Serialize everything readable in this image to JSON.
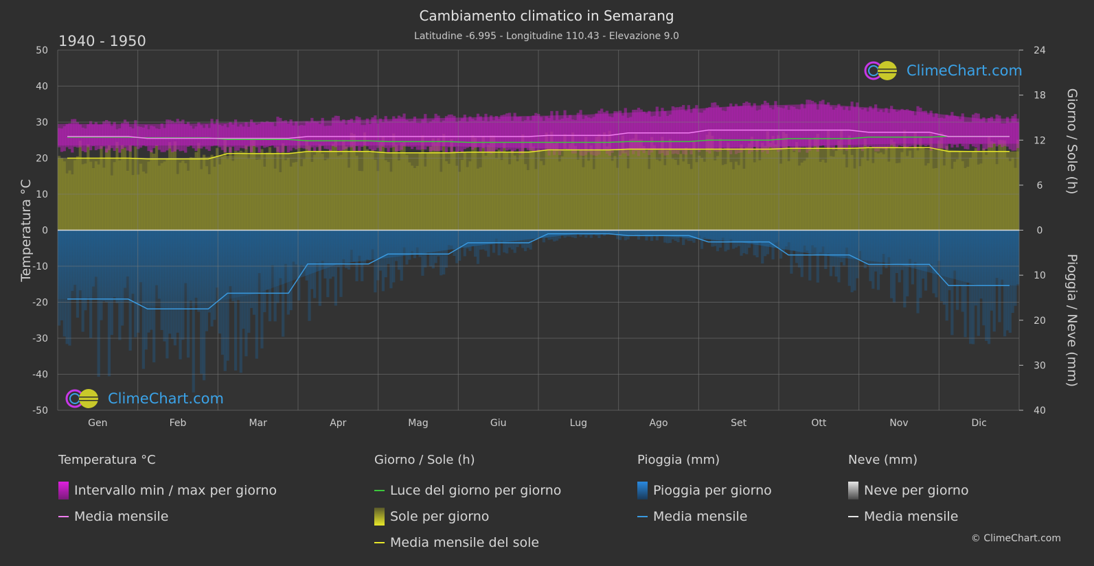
{
  "title": "Cambiamento climatico in Semarang",
  "subtitle": "Latitudine -6.995 - Longitudine 110.43 - Elevazione 9.0",
  "period": "1940 - 1950",
  "logo_text": "ClimeChart.com",
  "copyright": "© ClimeChart.com",
  "colors": {
    "background": "#2f2f2f",
    "temp_range": "#c31fc3",
    "temp_mean": "#f27ff2",
    "daylight": "#3cc83c",
    "sunshine_fill": "#9c9c2a",
    "sunshine_mean": "#e8e82a",
    "rain_fill": "#1c6aa8",
    "rain_mean": "#3a9ae0",
    "snow_mean": "#e6e6e6"
  },
  "chart_data": {
    "type": "line",
    "months": [
      "Gen",
      "Feb",
      "Mar",
      "Apr",
      "Mag",
      "Giu",
      "Lug",
      "Ago",
      "Set",
      "Ott",
      "Nov",
      "Dic"
    ],
    "y_left": {
      "label": "Temperatura °C",
      "range": [
        -50,
        50
      ],
      "ticks": [
        "50",
        "40",
        "30",
        "20",
        "10",
        "0",
        "-10",
        "-20",
        "-30",
        "-40",
        "-50"
      ]
    },
    "y_right_top": {
      "label": "Giorno / Sole (h)",
      "range": [
        0,
        24
      ],
      "ticks": [
        "24",
        "18",
        "12",
        "6",
        "0"
      ]
    },
    "y_right_bottom": {
      "label": "Pioggia / Neve (mm)",
      "range": [
        0,
        40
      ],
      "ticks": [
        "0",
        "10",
        "20",
        "30",
        "40"
      ]
    },
    "grid": true,
    "series": {
      "temp_max": [
        29.5,
        29.5,
        30,
        30.5,
        31,
        31.5,
        32,
        33,
        34.5,
        35,
        33.5,
        31
      ],
      "temp_min": [
        23.5,
        23.5,
        23.5,
        23.5,
        23.5,
        23,
        22.5,
        22.5,
        23,
        23.5,
        24,
        24
      ],
      "temp_mean": [
        26,
        25.5,
        25.5,
        26,
        26,
        26,
        26.3,
        27,
        27.8,
        27.8,
        27.2,
        26
      ],
      "daylight_hours": [
        12.4,
        12.3,
        12.1,
        11.9,
        11.8,
        11.7,
        11.7,
        11.8,
        12.0,
        12.2,
        12.4,
        12.5
      ],
      "sunshine_hours_mean": [
        9.6,
        9.5,
        10.2,
        10.5,
        10.3,
        10.4,
        10.7,
        10.8,
        10.8,
        10.9,
        11.0,
        10.5
      ],
      "rain_mm_mean": [
        15.3,
        17.5,
        14.0,
        7.5,
        5.3,
        2.8,
        0.8,
        1.2,
        2.6,
        5.5,
        7.6,
        12.3
      ],
      "snow_mm_mean": [
        0,
        0,
        0,
        0,
        0,
        0,
        0,
        0,
        0,
        0,
        0,
        0
      ]
    }
  },
  "legend": {
    "temperature": {
      "header": "Temperatura °C",
      "range_label": "Intervallo min / max per giorno",
      "mean_label": "Media mensile"
    },
    "daysun": {
      "header": "Giorno / Sole (h)",
      "daylight_label": "Luce del giorno per giorno",
      "sun_label": "Sole per giorno",
      "sun_mean_label": "Media mensile del sole"
    },
    "rain": {
      "header": "Pioggia (mm)",
      "rain_label": "Pioggia per giorno",
      "mean_label": "Media mensile"
    },
    "snow": {
      "header": "Neve (mm)",
      "snow_label": "Neve per giorno",
      "mean_label": "Media mensile"
    }
  }
}
